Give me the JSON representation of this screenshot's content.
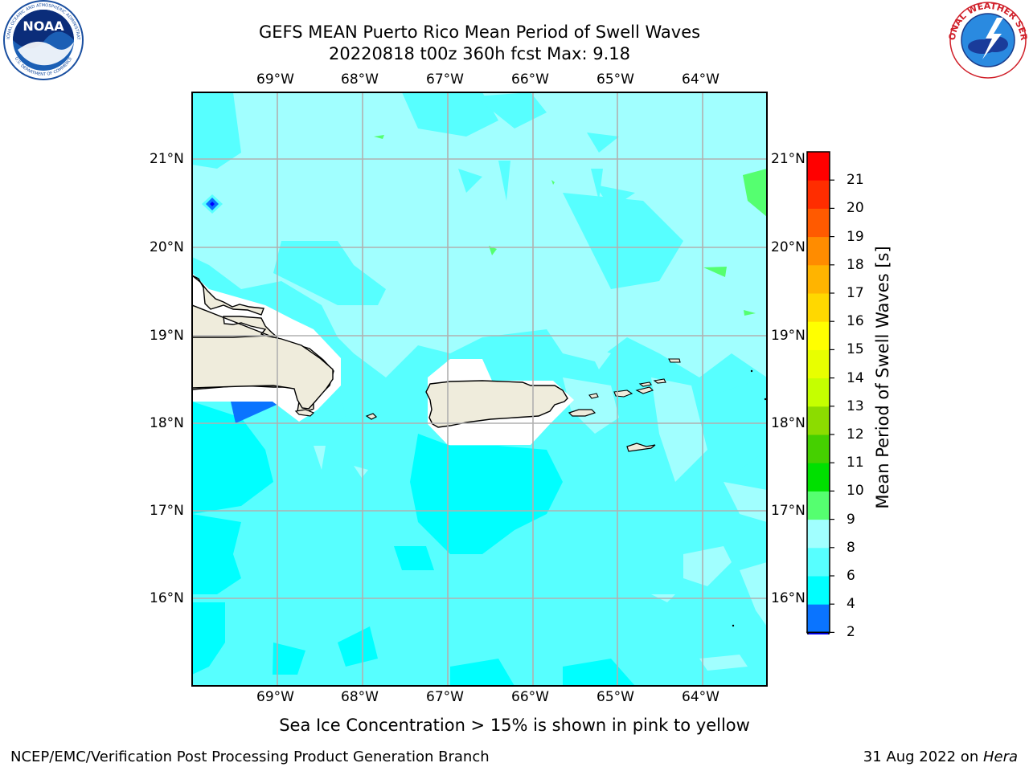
{
  "header": {
    "title_line1": "GEFS MEAN Puerto Rico Mean Period of Swell Waves",
    "title_line2": "20220818 t00z 360h fcst   Max: 9.18"
  },
  "logos": {
    "left": {
      "icon": "noaa-logo-icon",
      "text": "NOAA",
      "ring_text": "NATIONAL OCEANIC AND ATMOSPHERIC ADMINISTRATION · U.S. DEPARTMENT OF COMMERCE"
    },
    "right": {
      "icon": "nws-logo-icon",
      "ring_text": "NATIONAL WEATHER SERVICE"
    }
  },
  "map": {
    "lon_ticks": [
      "69°W",
      "68°W",
      "67°W",
      "66°W",
      "65°W",
      "64°W"
    ],
    "lat_ticks": [
      "21°N",
      "20°N",
      "19°N",
      "18°N",
      "17°N",
      "16°N"
    ],
    "lon_range": [
      -70.0,
      -63.25
    ],
    "lat_range": [
      15.0,
      21.75
    ],
    "gridlines": true,
    "land_color": "#efecdc",
    "coastline_color": "#000000"
  },
  "colorbar": {
    "label": "Mean Period of Swell Waves [s]",
    "tick_labels": [
      "2",
      "4",
      "6",
      "8",
      "9",
      "10",
      "11",
      "12",
      "13",
      "14",
      "15",
      "16",
      "17",
      "18",
      "19",
      "20",
      "21"
    ],
    "levels": [
      2,
      4,
      6,
      8,
      9,
      10,
      11,
      12,
      13,
      14,
      15,
      16,
      17,
      18,
      19,
      20,
      21
    ],
    "colors": [
      "#0a74ff",
      "#00ffff",
      "#57ffff",
      "#a1ffff",
      "#55ff70",
      "#00e000",
      "#45d000",
      "#8cdc00",
      "#c5ff00",
      "#e8ff00",
      "#ffff00",
      "#ffd800",
      "#ffb400",
      "#ff8c00",
      "#ff5a00",
      "#ff2d00",
      "#ff0000"
    ],
    "under_color": "#0000ff",
    "extend": "min"
  },
  "footer": {
    "note": "Sea Ice Concentration > 15% is shown in pink to yellow",
    "credit": "NCEP/EMC/Verification Post Processing Product Generation Branch",
    "date": "31 Aug 2022 on ",
    "machine": "Hera"
  }
}
